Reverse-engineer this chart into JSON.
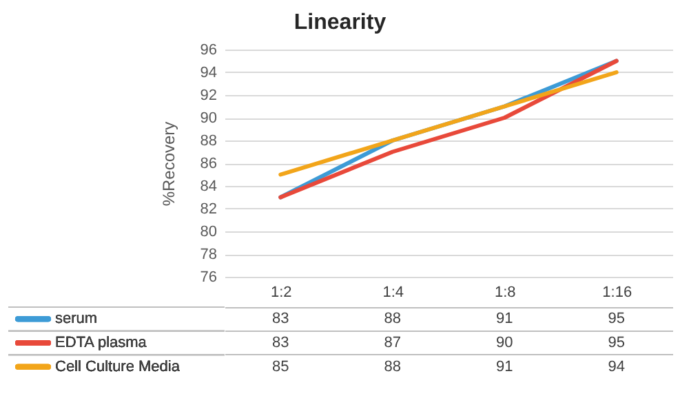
{
  "chart_data": {
    "type": "line",
    "title": "Linearity",
    "ylabel": "%Recovery",
    "categories": [
      "1:2",
      "1:4",
      "1:8",
      "1:16"
    ],
    "series": [
      {
        "name": "serum",
        "color": "#3d9bd6",
        "values": [
          83,
          88,
          91,
          95
        ]
      },
      {
        "name": "EDTA plasma",
        "color": "#e8493a",
        "values": [
          83,
          87,
          90,
          95
        ]
      },
      {
        "name": "Cell Culture Media",
        "color": "#f2a51a",
        "values": [
          85,
          88,
          91,
          94
        ]
      }
    ],
    "ylim": [
      76,
      96
    ],
    "yticks": [
      76,
      78,
      80,
      82,
      84,
      86,
      88,
      90,
      92,
      94,
      96
    ],
    "grid": "y",
    "legend": "bottom",
    "data_labels": true
  }
}
